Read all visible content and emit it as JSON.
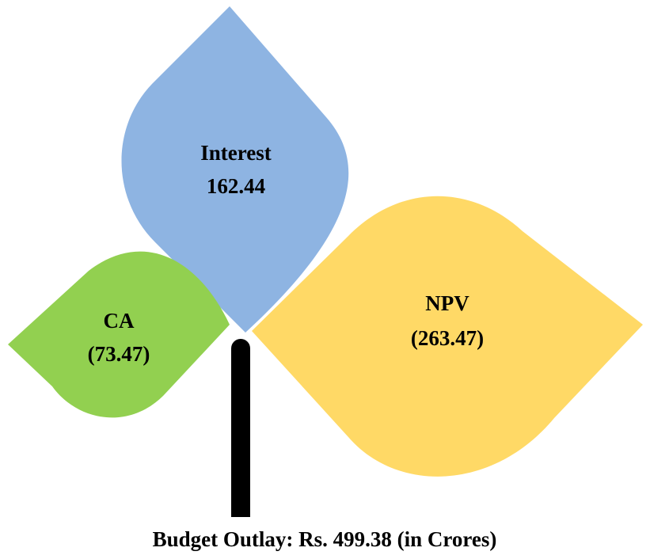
{
  "leaves": [
    {
      "label": "Interest",
      "value": "162.44"
    },
    {
      "label": "CA",
      "value": "(73.47)"
    },
    {
      "label": "NPV",
      "value": "(263.47)"
    }
  ],
  "caption": "Budget Outlay: Rs. 499.38 (in Crores)"
}
